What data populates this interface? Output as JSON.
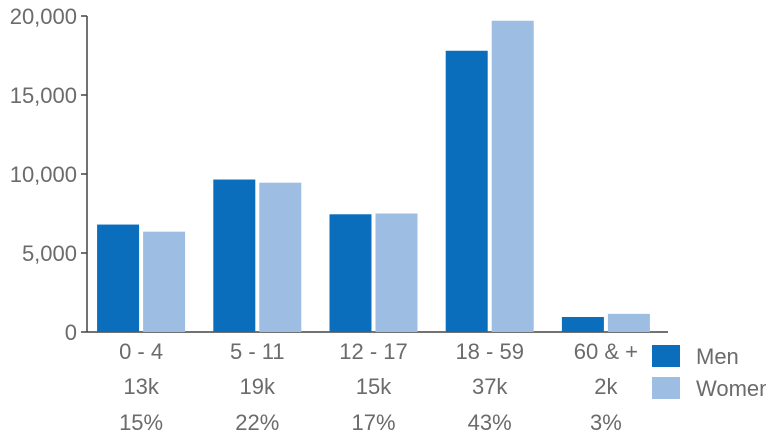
{
  "chart_data": {
    "type": "bar",
    "title": "",
    "xlabel": "",
    "ylabel": "",
    "ylim": [
      0,
      20000
    ],
    "yticks": [
      "0",
      "5,000",
      "10,000",
      "15,000",
      "20,000"
    ],
    "ytick_values": [
      0,
      5000,
      10000,
      15000,
      20000
    ],
    "categories": [
      "0 - 4",
      "5 - 11",
      "12 - 17",
      "18 - 59",
      "60 & +"
    ],
    "totals": [
      "13k",
      "19k",
      "15k",
      "37k",
      "2k"
    ],
    "shares": [
      "15%",
      "22%",
      "17%",
      "43%",
      "3%"
    ],
    "series": [
      {
        "name": "Men",
        "color": "#0a6ebd",
        "values": [
          6800,
          9650,
          7450,
          17800,
          950
        ]
      },
      {
        "name": "Women",
        "color": "#9dbde3",
        "values": [
          6350,
          9450,
          7500,
          19700,
          1150
        ]
      }
    ],
    "legend_position": "bottom-right",
    "grid": false
  }
}
